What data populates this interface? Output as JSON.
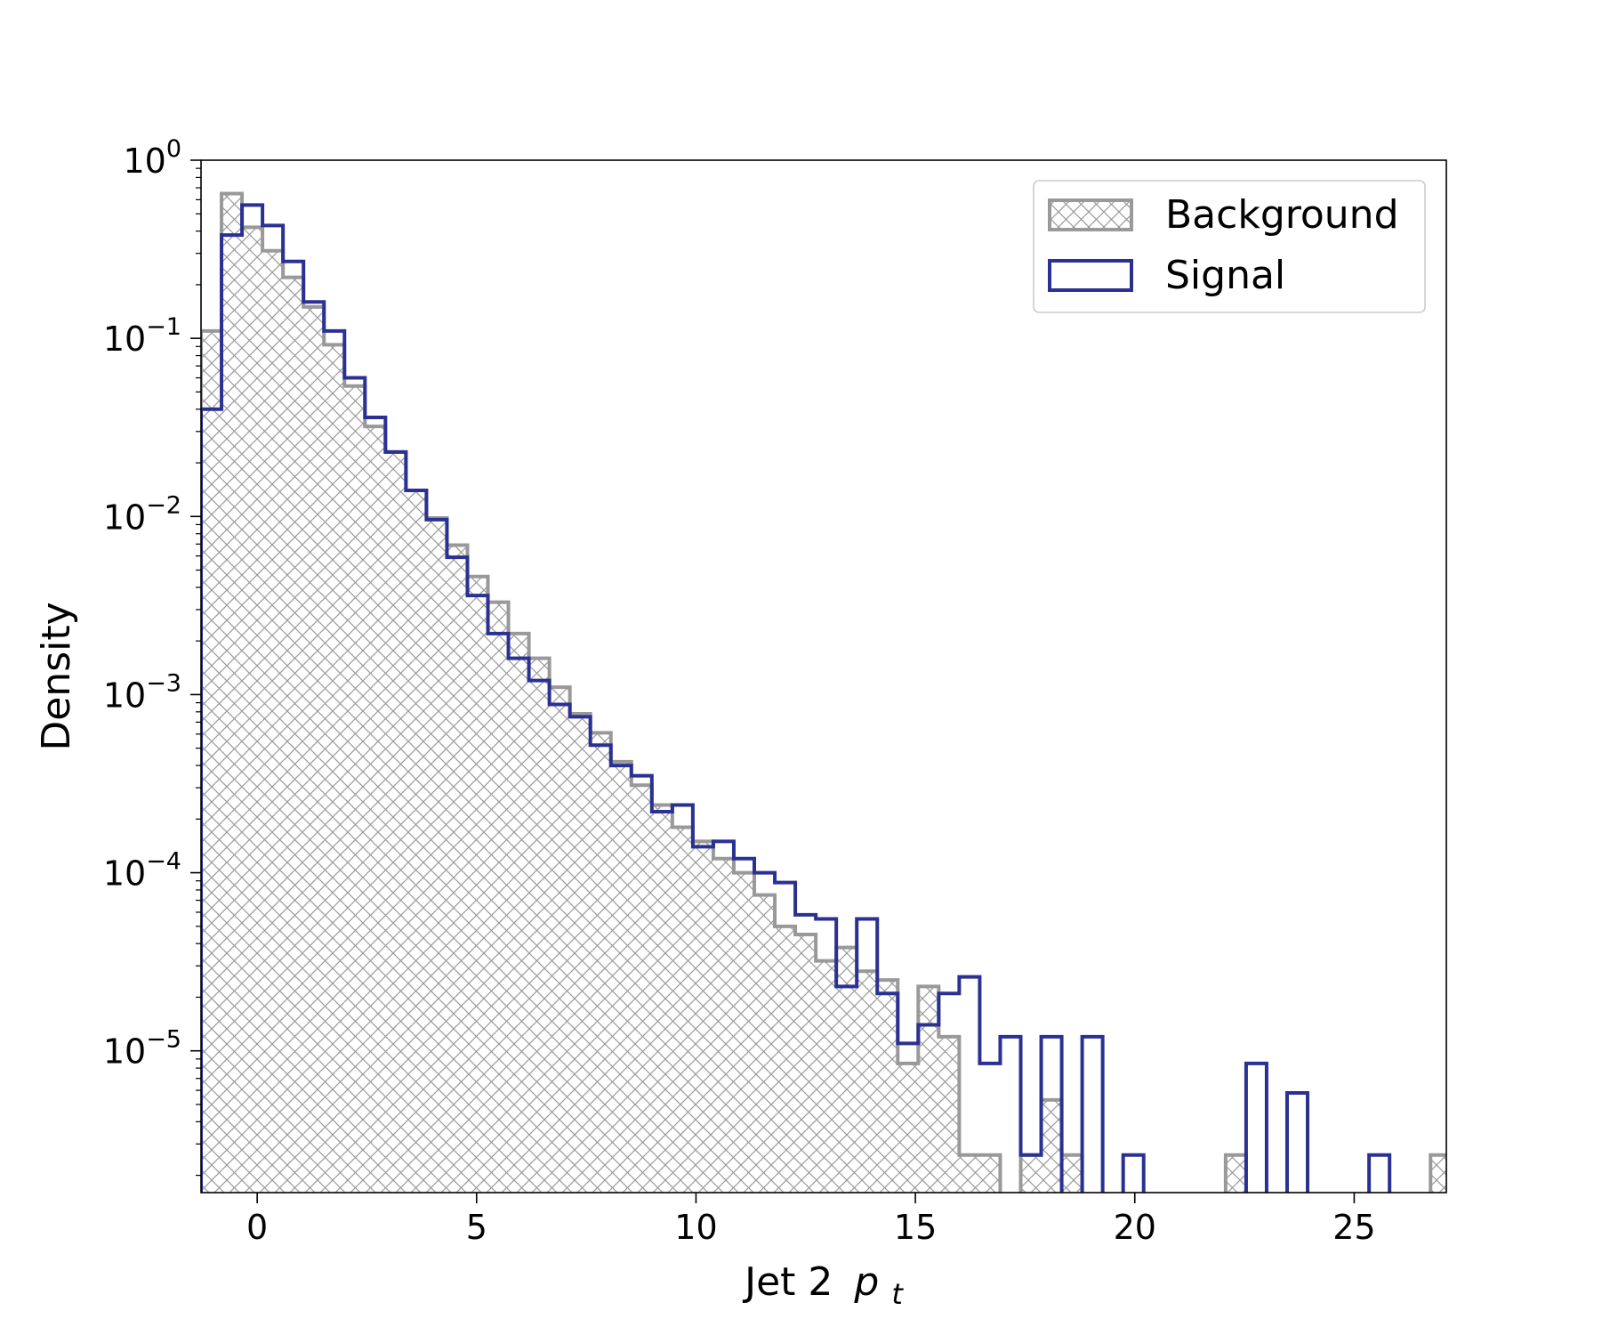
{
  "chart_data": {
    "type": "histogram",
    "title": "",
    "xlabel": "Jet 2",
    "xlabel_math": "p",
    "xlabel_sub": "t",
    "ylabel": "Density",
    "yscale": "log",
    "xlim": [
      -1.28,
      27.1
    ],
    "ylim": [
      1.6e-06,
      1.0
    ],
    "grid": false,
    "legend_position": "top-right",
    "x_ticks": [
      0,
      5,
      10,
      15,
      20,
      25
    ],
    "x_tick_labels": [
      "0",
      "5",
      "10",
      "15",
      "20",
      "25"
    ],
    "y_ticks": [
      {
        "value": 1,
        "base": "10",
        "exp": "0"
      },
      {
        "value": 0.1,
        "base": "10",
        "exp": "−1"
      },
      {
        "value": 0.01,
        "base": "10",
        "exp": "−2"
      },
      {
        "value": 0.001,
        "base": "10",
        "exp": "−3"
      },
      {
        "value": 0.0001,
        "base": "10",
        "exp": "−4"
      },
      {
        "value": 1e-05,
        "base": "10",
        "exp": "−5"
      }
    ],
    "bin_width": 0.467,
    "bin_start": -1.28,
    "series": [
      {
        "name": "Background",
        "style": "hatch",
        "color": "#999999",
        "values": [
          0.11,
          0.65,
          0.42,
          0.31,
          0.22,
          0.15,
          0.092,
          0.054,
          0.032,
          0.023,
          0.014,
          0.0098,
          0.0069,
          0.0046,
          0.0033,
          0.0022,
          0.0016,
          0.0011,
          0.00078,
          0.00061,
          0.00042,
          0.00031,
          0.00024,
          0.00018,
          0.00015,
          0.00012,
          0.0001,
          7.5e-05,
          5e-05,
          4.5e-05,
          3.2e-05,
          3.8e-05,
          2.8e-05,
          2.5e-05,
          8.5e-06,
          2.3e-05,
          1.2e-05,
          2.6e-06,
          2.6e-06,
          0,
          2.6e-06,
          5.3e-06,
          2.6e-06,
          0,
          0,
          0,
          0,
          0,
          0,
          0,
          2.6e-06,
          0,
          0,
          0,
          0,
          0,
          0,
          0,
          0,
          0,
          2.6e-06
        ]
      },
      {
        "name": "Signal",
        "style": "step",
        "color": "#2b3192",
        "values": [
          0.04,
          0.38,
          0.56,
          0.43,
          0.27,
          0.16,
          0.11,
          0.06,
          0.036,
          0.023,
          0.014,
          0.0096,
          0.0059,
          0.0036,
          0.0022,
          0.0016,
          0.0012,
          0.00088,
          0.00075,
          0.00052,
          0.0004,
          0.00035,
          0.00022,
          0.00024,
          0.00014,
          0.00015,
          0.00012,
          0.0001,
          8.8e-05,
          5.8e-05,
          5.5e-05,
          2.3e-05,
          5.5e-05,
          2.1e-05,
          1.1e-05,
          1.4e-05,
          2.1e-05,
          2.6e-05,
          8.5e-06,
          1.2e-05,
          2.6e-06,
          1.2e-05,
          0,
          1.2e-05,
          0,
          2.6e-06,
          0,
          0,
          0,
          0,
          0,
          8.5e-06,
          0,
          5.8e-06,
          0,
          0,
          0,
          2.6e-06,
          0,
          0,
          0
        ]
      }
    ]
  }
}
